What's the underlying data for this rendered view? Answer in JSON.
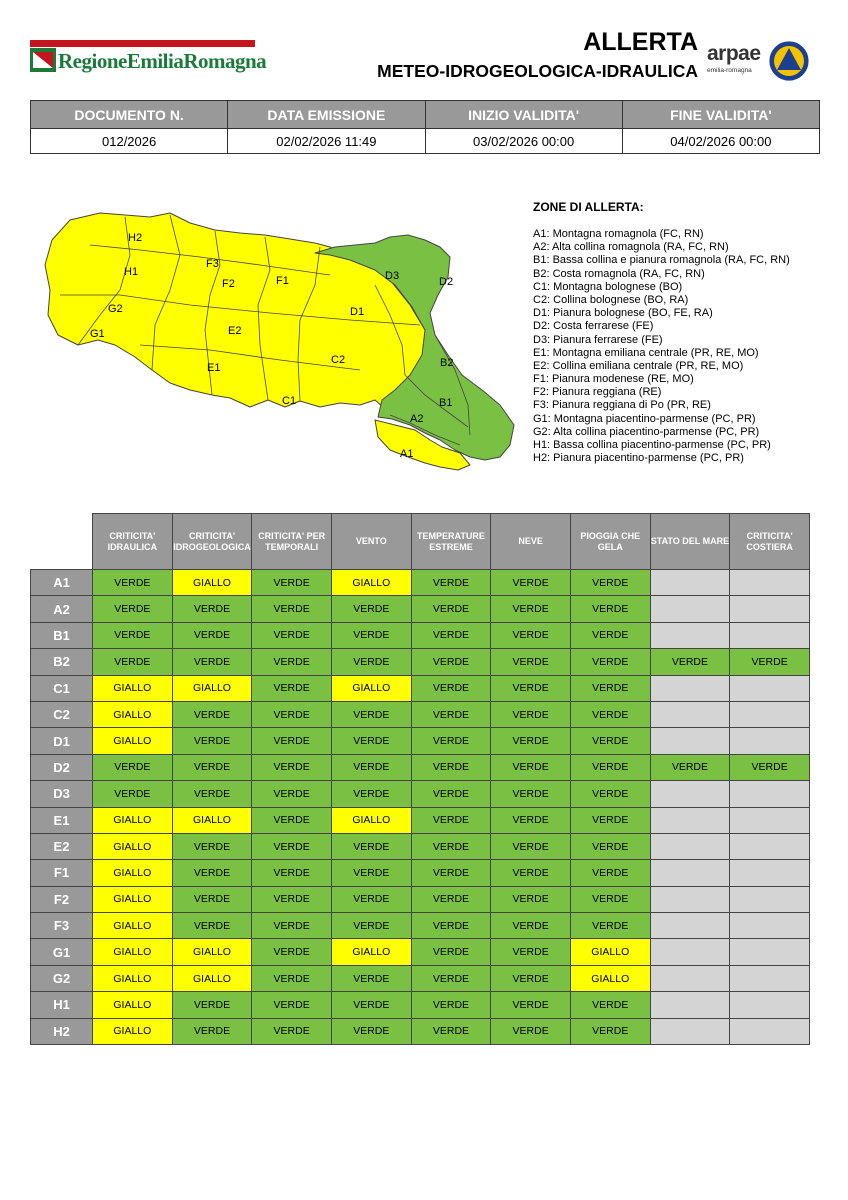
{
  "header": {
    "region_logo_text": "RegioneEmiliaRomagna",
    "title": "ALLERTA",
    "subtitle": "METEO-IDROGEOLOGICA-IDRAULICA",
    "arpae_name": "arpae",
    "arpae_sub": "emilia-romagna"
  },
  "document": {
    "headers": [
      "DOCUMENTO N.",
      "DATA EMISSIONE",
      "INIZIO VALIDITA'",
      "FINE VALIDITA'"
    ],
    "values": [
      "012/2026",
      "02/02/2026 11:49",
      "03/02/2026 00:00",
      "04/02/2026 00:00"
    ]
  },
  "map": {
    "colors": {
      "yellow": "#ffff00",
      "green": "#7ac143",
      "border": "#444444"
    },
    "labels": {
      "H2": "H2",
      "H1": "H1",
      "G2": "G2",
      "G1": "G1",
      "F3": "F3",
      "F2": "F2",
      "F1": "F1",
      "E2": "E2",
      "E1": "E1",
      "C1": "C1",
      "C2": "C2",
      "D1": "D1",
      "D3": "D3",
      "D2": "D2",
      "B2": "B2",
      "B1": "B1",
      "A2": "A2",
      "A1": "A1"
    }
  },
  "zones_legend": {
    "title": "ZONE DI ALLERTA:",
    "items": [
      "A1: Montagna romagnola (FC, RN)",
      "A2: Alta collina romagnola (RA, FC, RN)",
      "B1: Bassa collina e pianura romagnola (RA, FC, RN)",
      "B2: Costa romagnola (RA, FC, RN)",
      "C1: Montagna bolognese (BO)",
      "C2: Collina bolognese (BO, RA)",
      "D1: Pianura bolognese (BO, FE, RA)",
      "D2: Costa ferrarese (FE)",
      "D3: Pianura ferrarese (FE)",
      "E1: Montagna emiliana centrale (PR, RE, MO)",
      "E2: Collina emiliana centrale (PR, RE, MO)",
      "F1: Pianura modenese (RE, MO)",
      "F2: Pianura reggiana (RE)",
      "F3: Pianura reggiana di Po (PR, RE)",
      "G1: Montagna piacentino-parmense (PC, PR)",
      "G2: Alta collina piacentino-parmense (PC, PR)",
      "H1: Bassa collina piacentino-parmense (PC, PR)",
      "H2: Pianura piacentino-parmense (PC, PR)"
    ]
  },
  "alert_table": {
    "columns": [
      "CRITICITA' IDRAULICA",
      "CRITICITA' IDROGEOLOGICA",
      "CRITICITA' PER TEMPORALI",
      "VENTO",
      "TEMPERATURE ESTREME",
      "NEVE",
      "PIOGGIA CHE GELA",
      "STATO DEL MARE",
      "CRITICITA' COSTIERA"
    ],
    "colors": {
      "VERDE": "#7ac143",
      "GIALLO": "#ffff00",
      "NA": "#d4d4d4"
    },
    "rows": [
      {
        "zone": "A1",
        "values": [
          "VERDE",
          "GIALLO",
          "VERDE",
          "GIALLO",
          "VERDE",
          "VERDE",
          "VERDE",
          "",
          ""
        ]
      },
      {
        "zone": "A2",
        "values": [
          "VERDE",
          "VERDE",
          "VERDE",
          "VERDE",
          "VERDE",
          "VERDE",
          "VERDE",
          "",
          ""
        ]
      },
      {
        "zone": "B1",
        "values": [
          "VERDE",
          "VERDE",
          "VERDE",
          "VERDE",
          "VERDE",
          "VERDE",
          "VERDE",
          "",
          ""
        ]
      },
      {
        "zone": "B2",
        "values": [
          "VERDE",
          "VERDE",
          "VERDE",
          "VERDE",
          "VERDE",
          "VERDE",
          "VERDE",
          "VERDE",
          "VERDE"
        ]
      },
      {
        "zone": "C1",
        "values": [
          "GIALLO",
          "GIALLO",
          "VERDE",
          "GIALLO",
          "VERDE",
          "VERDE",
          "VERDE",
          "",
          ""
        ]
      },
      {
        "zone": "C2",
        "values": [
          "GIALLO",
          "VERDE",
          "VERDE",
          "VERDE",
          "VERDE",
          "VERDE",
          "VERDE",
          "",
          ""
        ]
      },
      {
        "zone": "D1",
        "values": [
          "GIALLO",
          "VERDE",
          "VERDE",
          "VERDE",
          "VERDE",
          "VERDE",
          "VERDE",
          "",
          ""
        ]
      },
      {
        "zone": "D2",
        "values": [
          "VERDE",
          "VERDE",
          "VERDE",
          "VERDE",
          "VERDE",
          "VERDE",
          "VERDE",
          "VERDE",
          "VERDE"
        ]
      },
      {
        "zone": "D3",
        "values": [
          "VERDE",
          "VERDE",
          "VERDE",
          "VERDE",
          "VERDE",
          "VERDE",
          "VERDE",
          "",
          ""
        ]
      },
      {
        "zone": "E1",
        "values": [
          "GIALLO",
          "GIALLO",
          "VERDE",
          "GIALLO",
          "VERDE",
          "VERDE",
          "VERDE",
          "",
          ""
        ]
      },
      {
        "zone": "E2",
        "values": [
          "GIALLO",
          "VERDE",
          "VERDE",
          "VERDE",
          "VERDE",
          "VERDE",
          "VERDE",
          "",
          ""
        ]
      },
      {
        "zone": "F1",
        "values": [
          "GIALLO",
          "VERDE",
          "VERDE",
          "VERDE",
          "VERDE",
          "VERDE",
          "VERDE",
          "",
          ""
        ]
      },
      {
        "zone": "F2",
        "values": [
          "GIALLO",
          "VERDE",
          "VERDE",
          "VERDE",
          "VERDE",
          "VERDE",
          "VERDE",
          "",
          ""
        ]
      },
      {
        "zone": "F3",
        "values": [
          "GIALLO",
          "VERDE",
          "VERDE",
          "VERDE",
          "VERDE",
          "VERDE",
          "VERDE",
          "",
          ""
        ]
      },
      {
        "zone": "G1",
        "values": [
          "GIALLO",
          "GIALLO",
          "VERDE",
          "GIALLO",
          "VERDE",
          "VERDE",
          "GIALLO",
          "",
          ""
        ]
      },
      {
        "zone": "G2",
        "values": [
          "GIALLO",
          "GIALLO",
          "VERDE",
          "VERDE",
          "VERDE",
          "VERDE",
          "GIALLO",
          "",
          ""
        ]
      },
      {
        "zone": "H1",
        "values": [
          "GIALLO",
          "VERDE",
          "VERDE",
          "VERDE",
          "VERDE",
          "VERDE",
          "VERDE",
          "",
          ""
        ]
      },
      {
        "zone": "H2",
        "values": [
          "GIALLO",
          "VERDE",
          "VERDE",
          "VERDE",
          "VERDE",
          "VERDE",
          "VERDE",
          "",
          ""
        ]
      }
    ]
  }
}
